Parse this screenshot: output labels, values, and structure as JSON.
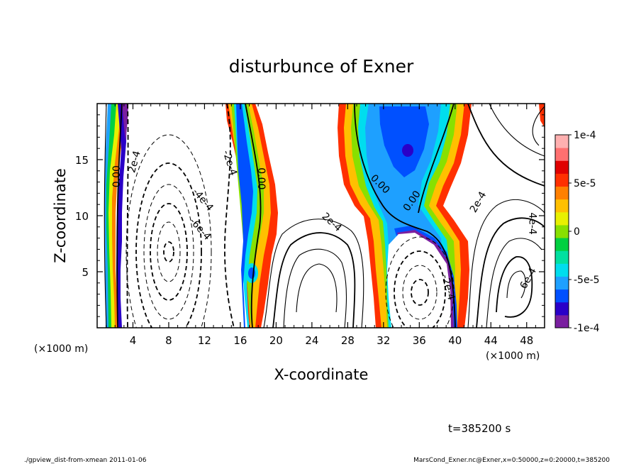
{
  "chart_data": {
    "type": "heatmap",
    "title": "disturbunce of Exner",
    "xlabel": "X-coordinate",
    "ylabel": "Z-coordinate",
    "x_unit_left": "(×1000 m)",
    "x_unit_right": "(×1000 m)",
    "xlim": [
      0,
      50
    ],
    "ylim": [
      0,
      20
    ],
    "x_ticks": [
      "4",
      "8",
      "12",
      "16",
      "20",
      "24",
      "28",
      "32",
      "36",
      "40",
      "44",
      "48"
    ],
    "x_tick_values": [
      4,
      8,
      12,
      16,
      20,
      24,
      28,
      32,
      36,
      40,
      44,
      48
    ],
    "y_ticks": [
      "5",
      "10",
      "15"
    ],
    "y_tick_values": [
      5,
      10,
      15
    ],
    "colorbar": {
      "labels": [
        "1e-4",
        "5e-5",
        "0",
        "-5e-5",
        "-1e-4"
      ],
      "label_values": [
        0.0001,
        5e-05,
        0,
        -5e-05,
        -0.0001
      ],
      "range": [
        -0.0001,
        0.0001
      ],
      "colors": [
        "#7a1fa0",
        "#2a00c8",
        "#0050ff",
        "#1ea0ff",
        "#00ddee",
        "#00e0a0",
        "#00d040",
        "#88e000",
        "#e8f000",
        "#ffc000",
        "#ff8000",
        "#ff3000",
        "#e00000",
        "#ff7070",
        "#ffb0b0"
      ]
    },
    "contour_labels": [
      {
        "text": "0.00",
        "x": 2.2,
        "y": 13.5,
        "angle": -90
      },
      {
        "text": "2e-4",
        "x": 4.2,
        "y": 14.8,
        "angle": -75
      },
      {
        "text": "-2e-4",
        "x": 14.8,
        "y": 14.7,
        "angle": 72
      },
      {
        "text": "-4e-4",
        "x": 11.8,
        "y": 11.4,
        "angle": 50
      },
      {
        "text": "-6e-4",
        "x": 11.5,
        "y": 8.8,
        "angle": 48
      },
      {
        "text": "0.00",
        "x": 18.3,
        "y": 13.3,
        "angle": 90
      },
      {
        "text": "2e-4",
        "x": 26.2,
        "y": 9.4,
        "angle": 42
      },
      {
        "text": "0.00",
        "x": 31.6,
        "y": 12.8,
        "angle": 45
      },
      {
        "text": "0.00",
        "x": 35.2,
        "y": 11.3,
        "angle": -55
      },
      {
        "text": "2e-4",
        "x": 42.6,
        "y": 11.2,
        "angle": -60
      },
      {
        "text": "-2e-4",
        "x": 39.2,
        "y": 3.6,
        "angle": 75
      },
      {
        "text": "4e-4",
        "x": 48.6,
        "y": 9.3,
        "angle": 90
      },
      {
        "text": "6e-4",
        "x": 48.2,
        "y": 4.4,
        "angle": -60
      }
    ],
    "time_label": "t=385200 s",
    "footer_left": "./gpview_dist-from-xmean  2011-01-06",
    "footer_right": "MarsCond_Exner.nc@Exner,x=0:50000,z=0:20000,t=385200"
  }
}
